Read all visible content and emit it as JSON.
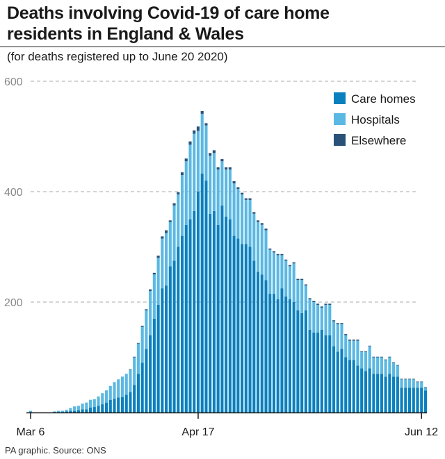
{
  "header": {
    "title_line1": "Deaths involving Covid-19 of care home",
    "title_line2": "residents in England & Wales",
    "subtitle": "(for deaths registered up to June 20 2020)"
  },
  "footer": {
    "source": "PA graphic. Source: ONS"
  },
  "colors": {
    "care_homes": "#0a80be",
    "hospitals": "#5bb8e2",
    "elsewhere": "#2a5278",
    "grid": "#bbbbbb",
    "axis": "#1a1a1a"
  },
  "chart_data": {
    "type": "bar",
    "stacked": true,
    "title": "Deaths involving Covid-19 of care home residents in England & Wales",
    "subtitle": "(for deaths registered up to June 20 2020)",
    "xlabel": "",
    "ylabel": "",
    "ylim": [
      0,
      600
    ],
    "yticks": [
      200,
      400,
      600
    ],
    "grid": true,
    "legend": "top-right",
    "x_start": "Mar 6",
    "x_ticks": [
      {
        "label": "Mar 6",
        "index": 0
      },
      {
        "label": "Apr 17",
        "index": 42
      },
      {
        "label": "Jun 12",
        "index": 98
      }
    ],
    "series": [
      {
        "name": "Care homes",
        "values": [
          1,
          0,
          0,
          0,
          0,
          0,
          1,
          1,
          1,
          2,
          3,
          3,
          4,
          6,
          6,
          9,
          10,
          12,
          15,
          18,
          23,
          25,
          27,
          28,
          32,
          37,
          50,
          70,
          90,
          115,
          140,
          170,
          195,
          225,
          230,
          265,
          275,
          300,
          320,
          340,
          350,
          365,
          400,
          433,
          420,
          360,
          365,
          340,
          375,
          355,
          350,
          320,
          315,
          305,
          305,
          300,
          275,
          255,
          250,
          240,
          215,
          215,
          205,
          225,
          210,
          205,
          200,
          185,
          180,
          185,
          150,
          145,
          145,
          150,
          140,
          140,
          120,
          110,
          115,
          100,
          95,
          95,
          85,
          80,
          75,
          80,
          70,
          70,
          70,
          65,
          70,
          65,
          65,
          45,
          45,
          45,
          45,
          45,
          45,
          40
        ]
      },
      {
        "name": "Hospitals",
        "values": [
          2,
          0,
          0,
          0,
          0,
          0,
          1,
          2,
          2,
          3,
          5,
          8,
          8,
          10,
          12,
          14,
          14,
          17,
          20,
          22,
          25,
          30,
          33,
          37,
          38,
          40,
          50,
          55,
          65,
          70,
          80,
          80,
          85,
          90,
          95,
          80,
          100,
          95,
          110,
          115,
          135,
          140,
          110,
          108,
          100,
          105,
          105,
          100,
          80,
          85,
          90,
          95,
          90,
          90,
          80,
          85,
          85,
          90,
          90,
          90,
          80,
          75,
          80,
          60,
          65,
          60,
          70,
          55,
          60,
          45,
          55,
          55,
          50,
          40,
          55,
          55,
          45,
          50,
          45,
          40,
          35,
          35,
          45,
          30,
          35,
          40,
          30,
          30,
          30,
          30,
          30,
          25,
          20,
          15,
          15,
          15,
          15,
          10,
          10,
          5
        ]
      },
      {
        "name": "Elsewhere",
        "values": [
          0,
          0,
          0,
          0,
          0,
          0,
          0,
          0,
          0,
          0,
          0,
          0,
          0,
          0,
          0,
          0,
          0,
          0,
          0,
          0,
          0,
          0,
          0,
          0,
          0,
          1,
          1,
          1,
          2,
          2,
          3,
          3,
          4,
          4,
          5,
          3,
          4,
          4,
          5,
          5,
          6,
          6,
          8,
          5,
          4,
          5,
          5,
          4,
          4,
          4,
          4,
          4,
          3,
          3,
          3,
          3,
          3,
          3,
          3,
          3,
          2,
          2,
          2,
          2,
          2,
          2,
          2,
          2,
          2,
          2,
          2,
          2,
          2,
          2,
          2,
          2,
          2,
          2,
          2,
          2,
          2,
          2,
          2,
          1,
          1,
          1,
          1,
          1,
          1,
          1,
          1,
          1,
          1,
          1,
          1,
          1,
          1,
          1,
          1,
          1
        ]
      }
    ]
  }
}
